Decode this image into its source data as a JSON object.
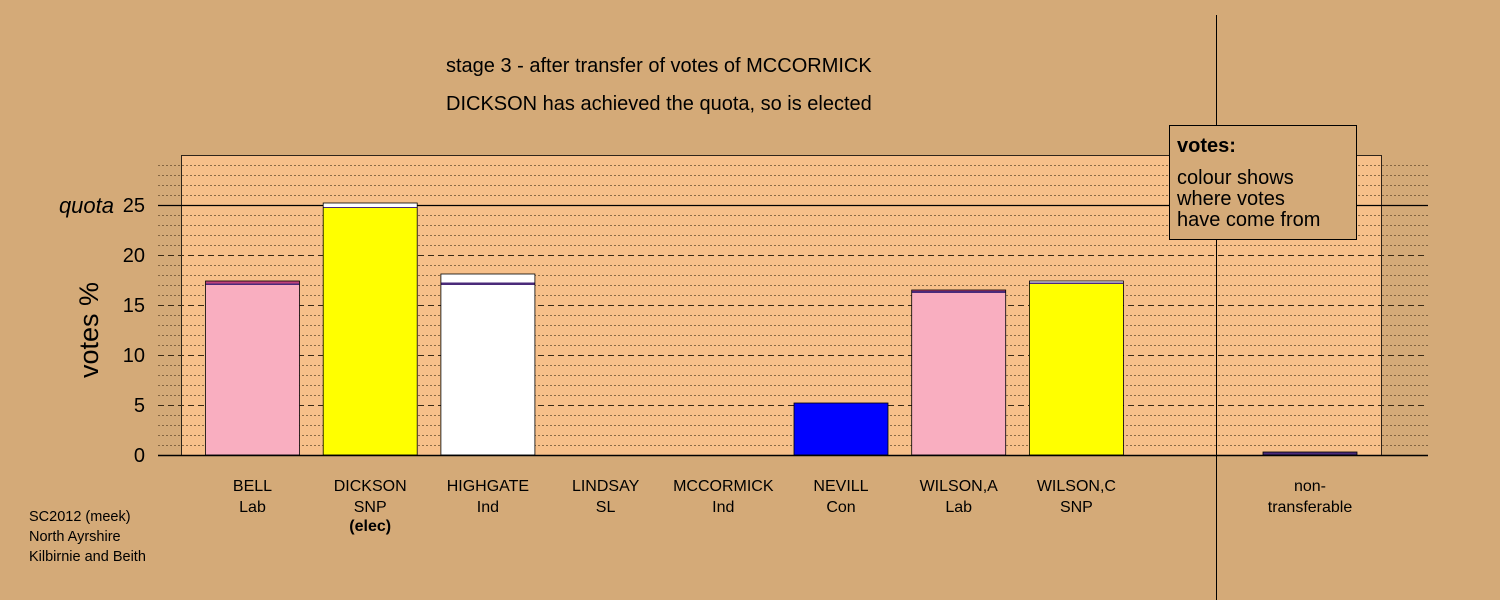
{
  "chart_data": {
    "type": "bar",
    "title": "stage 3 - after transfer of votes of MCCORMICK",
    "subtitle": "DICKSON has achieved the quota, so is elected",
    "ylabel": "votes %",
    "quota_label": "quota",
    "quota": 25,
    "ylim": [
      0,
      30
    ],
    "yticks": [
      0,
      5,
      10,
      15,
      20,
      25
    ],
    "grid": true,
    "candidates": [
      {
        "name": "BELL",
        "party": "Lab",
        "note": "",
        "segments": [
          {
            "from": "Lab",
            "value": 17.0,
            "color": "#f9aec0"
          },
          {
            "from": "SL",
            "value": 0.15,
            "color": "#4a2a7a"
          },
          {
            "from": "Ind",
            "value": 0.25,
            "color": "#c0407a"
          }
        ]
      },
      {
        "name": "DICKSON",
        "party": "SNP",
        "note": "(elec)",
        "segments": [
          {
            "from": "SNP",
            "value": 24.7,
            "color": "#ffff00"
          },
          {
            "from": "SL",
            "value": 0.1,
            "color": "#4a2a7a"
          },
          {
            "from": "Ind",
            "value": 0.4,
            "color": "#ffffff"
          }
        ]
      },
      {
        "name": "HIGHGATE",
        "party": "Ind",
        "note": "",
        "segments": [
          {
            "from": "Ind",
            "value": 17.0,
            "color": "#ffffff"
          },
          {
            "from": "SL",
            "value": 0.25,
            "color": "#4a2a7a"
          },
          {
            "from": "Ind",
            "value": 0.85,
            "color": "#ffffff"
          }
        ]
      },
      {
        "name": "LINDSAY",
        "party": "SL",
        "note": "",
        "segments": []
      },
      {
        "name": "MCCORMICK",
        "party": "Ind",
        "note": "",
        "segments": []
      },
      {
        "name": "NEVILL",
        "party": "Con",
        "note": "",
        "segments": [
          {
            "from": "Con",
            "value": 5.2,
            "color": "#0000ff"
          }
        ]
      },
      {
        "name": "WILSON,A",
        "party": "Lab",
        "note": "",
        "segments": [
          {
            "from": "Lab",
            "value": 16.2,
            "color": "#f9aec0"
          },
          {
            "from": "SL",
            "value": 0.2,
            "color": "#4a2a7a"
          },
          {
            "from": "Ind",
            "value": 0.1,
            "color": "#c0407a"
          }
        ]
      },
      {
        "name": "WILSON,C",
        "party": "SNP",
        "note": "",
        "segments": [
          {
            "from": "SNP",
            "value": 17.1,
            "color": "#ffff00"
          },
          {
            "from": "SL",
            "value": 0.15,
            "color": "#4a2a7a"
          },
          {
            "from": "Ind",
            "value": 0.15,
            "color": "#ffffff"
          }
        ]
      }
    ],
    "non_transferable": {
      "label_line1": "non-",
      "label_line2": "transferable",
      "segments": [
        {
          "from": "SL",
          "value": 0.3,
          "color": "#4a2a7a"
        }
      ]
    }
  },
  "legend": {
    "title": "votes:",
    "lines": [
      "colour shows",
      "where votes",
      "have come from"
    ]
  },
  "footer": {
    "line1": "SC2012 (meek)",
    "line2": "North Ayrshire",
    "line3": "Kilbirnie and Beith"
  },
  "colors": {
    "background": "#d4aa78",
    "plot_background": "#f7c08a",
    "legend_background": "#d4aa78"
  }
}
